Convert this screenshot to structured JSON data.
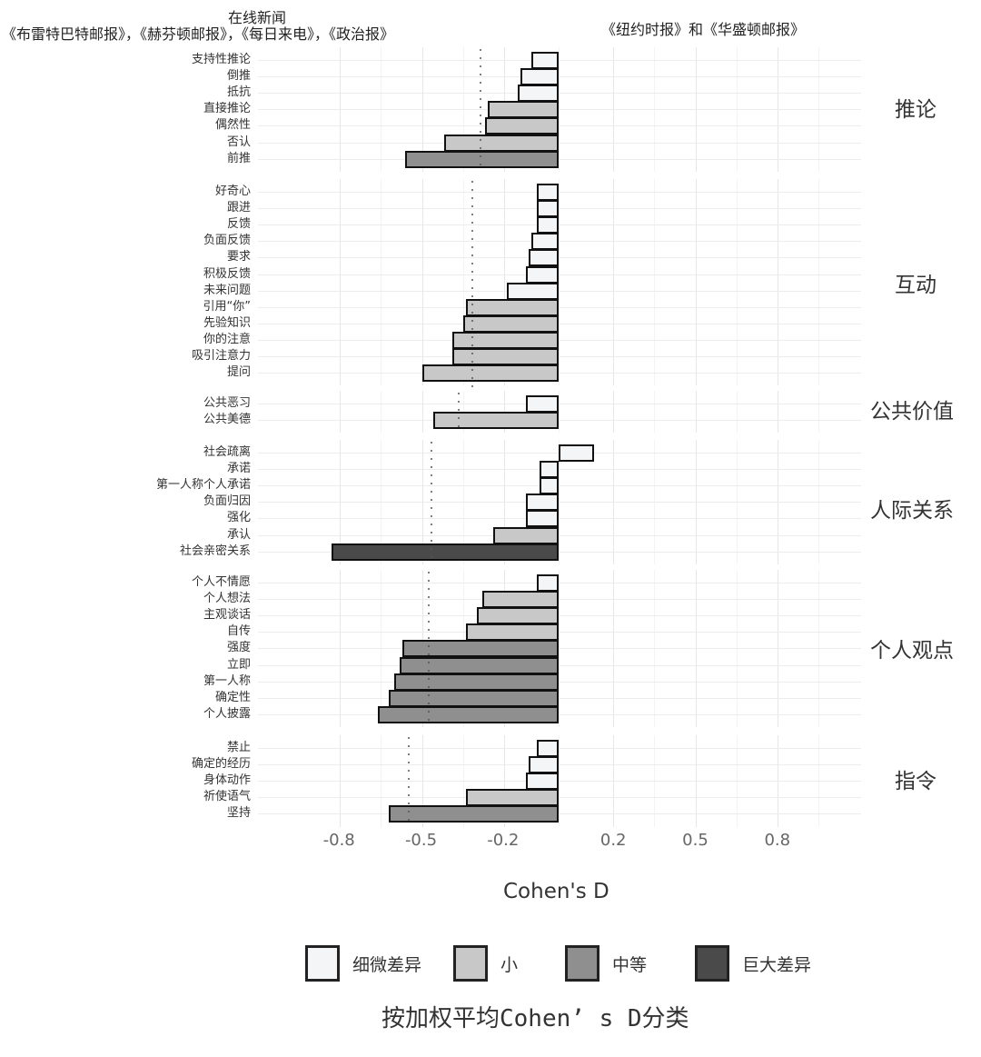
{
  "header": {
    "left_title": "在线新闻",
    "left_sources": "《布雷特巴特邮报》，《赫芬顿邮报》，《每日来电》，《政治报》",
    "right_sources": "《纽约时报》和《华盛顿邮报》"
  },
  "colors": {
    "negligible": "#f4f5f7",
    "small": "#c8c8c8",
    "medium": "#8f8f8f",
    "large": "#4a4a4a",
    "border": "#111111",
    "grid": "#ececec"
  },
  "legend": {
    "items": [
      {
        "label": "细微差异",
        "key": "negligible"
      },
      {
        "label": "小",
        "key": "small"
      },
      {
        "label": "中等",
        "key": "medium"
      },
      {
        "label": "巨大差异",
        "key": "large"
      }
    ],
    "caption": "按加权平均Cohen’ s D分类"
  },
  "chart_data": {
    "type": "bar",
    "orientation": "horizontal",
    "title": "",
    "xlabel": "Cohen's D",
    "ylabel": "",
    "xlim": [
      -0.9,
      1.0
    ],
    "x_ticks": [
      -0.8,
      -0.5,
      -0.2,
      0.2,
      0.5,
      0.8
    ],
    "x_tick_labels": [
      "-0.8",
      "-0.5",
      "-0.2",
      "0.2",
      "0.5",
      "0.8"
    ],
    "grid": true,
    "legend_position": "bottom",
    "legend_title": "按加权平均Cohen’ s D分类",
    "legend_entries": [
      "细微差异",
      "小",
      "中等",
      "巨大差异"
    ],
    "header_left": "在线新闻 《布雷特巴特邮报》，《赫芬顿邮报》，《每日来电》，《政治报》",
    "header_right": "《纽约时报》和《华盛顿邮报》",
    "facets": [
      {
        "name": "推论",
        "mean": -0.29,
        "items": [
          {
            "label": "支持性推论",
            "value": -0.1,
            "category": "negligible"
          },
          {
            "label": "倒推",
            "value": -0.14,
            "category": "negligible"
          },
          {
            "label": "抵抗",
            "value": -0.15,
            "category": "negligible"
          },
          {
            "label": "直接推论",
            "value": -0.26,
            "category": "small"
          },
          {
            "label": "偶然性",
            "value": -0.27,
            "category": "small"
          },
          {
            "label": "否认",
            "value": -0.42,
            "category": "small"
          },
          {
            "label": "前推",
            "value": -0.56,
            "category": "medium"
          }
        ]
      },
      {
        "name": "互动",
        "mean": -0.32,
        "items": [
          {
            "label": "好奇心",
            "value": -0.08,
            "category": "negligible"
          },
          {
            "label": "跟进",
            "value": -0.08,
            "category": "negligible"
          },
          {
            "label": "反馈",
            "value": -0.08,
            "category": "negligible"
          },
          {
            "label": "负面反馈",
            "value": -0.1,
            "category": "negligible"
          },
          {
            "label": "要求",
            "value": -0.11,
            "category": "negligible"
          },
          {
            "label": "积极反馈",
            "value": -0.12,
            "category": "negligible"
          },
          {
            "label": "未来问题",
            "value": -0.19,
            "category": "negligible"
          },
          {
            "label": "引用“你”",
            "value": -0.34,
            "category": "small"
          },
          {
            "label": "先验知识",
            "value": -0.35,
            "category": "small"
          },
          {
            "label": "你的注意",
            "value": -0.39,
            "category": "small"
          },
          {
            "label": "吸引注意力",
            "value": -0.39,
            "category": "small"
          },
          {
            "label": "提问",
            "value": -0.5,
            "category": "small"
          }
        ]
      },
      {
        "name": "公共价值",
        "mean": -0.37,
        "items": [
          {
            "label": "公共恶习",
            "value": -0.12,
            "category": "negligible"
          },
          {
            "label": "公共美德",
            "value": -0.46,
            "category": "small"
          }
        ]
      },
      {
        "name": "人际关系",
        "mean": -0.47,
        "items": [
          {
            "label": "社会疏离",
            "value": 0.13,
            "category": "negligible"
          },
          {
            "label": "承诺",
            "value": -0.07,
            "category": "negligible"
          },
          {
            "label": "第一人称个人承诺",
            "value": -0.07,
            "category": "negligible"
          },
          {
            "label": "负面归因",
            "value": -0.12,
            "category": "negligible"
          },
          {
            "label": "强化",
            "value": -0.12,
            "category": "negligible"
          },
          {
            "label": "承认",
            "value": -0.24,
            "category": "small"
          },
          {
            "label": "社会亲密关系",
            "value": -0.83,
            "category": "large"
          }
        ]
      },
      {
        "name": "个人观点",
        "mean": -0.48,
        "items": [
          {
            "label": "个人不情愿",
            "value": -0.08,
            "category": "negligible"
          },
          {
            "label": "个人想法",
            "value": -0.28,
            "category": "small"
          },
          {
            "label": "主观谈话",
            "value": -0.3,
            "category": "small"
          },
          {
            "label": "自传",
            "value": -0.34,
            "category": "small"
          },
          {
            "label": "强度",
            "value": -0.57,
            "category": "medium"
          },
          {
            "label": "立即",
            "value": -0.58,
            "category": "medium"
          },
          {
            "label": "第一人称",
            "value": -0.6,
            "category": "medium"
          },
          {
            "label": "确定性",
            "value": -0.62,
            "category": "medium"
          },
          {
            "label": "个人披露",
            "value": -0.66,
            "category": "medium"
          }
        ]
      },
      {
        "name": "指令",
        "mean": -0.55,
        "items": [
          {
            "label": "禁止",
            "value": -0.08,
            "category": "negligible"
          },
          {
            "label": "确定的经历",
            "value": -0.11,
            "category": "negligible"
          },
          {
            "label": "身体动作",
            "value": -0.12,
            "category": "negligible"
          },
          {
            "label": "祈使语气",
            "value": -0.34,
            "category": "small"
          },
          {
            "label": "坚持",
            "value": -0.62,
            "category": "medium"
          }
        ]
      }
    ]
  }
}
